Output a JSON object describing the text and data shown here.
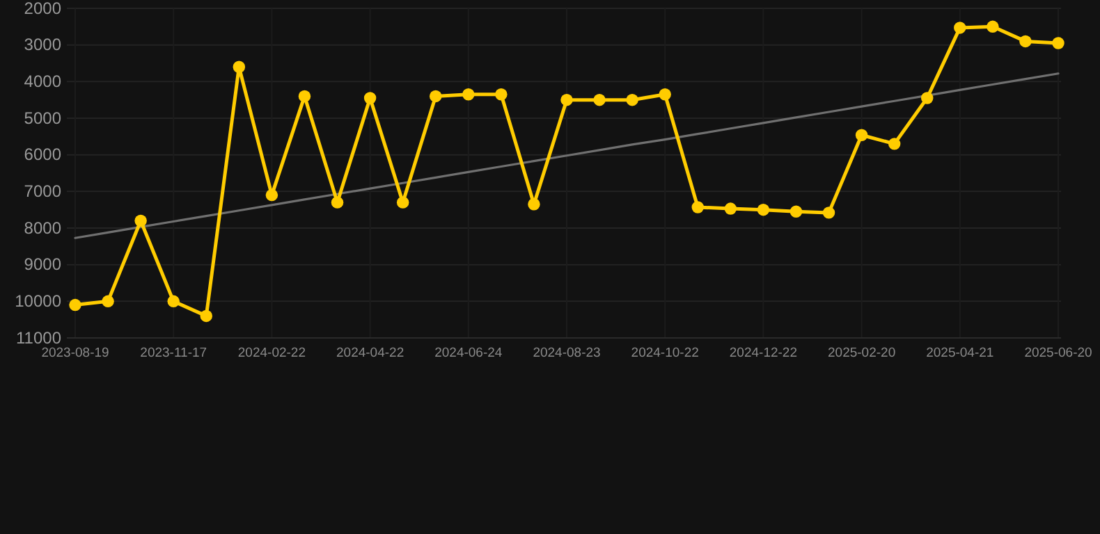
{
  "chart_data": {
    "type": "line",
    "categories": [
      "2023-08-19",
      null,
      null,
      "2023-11-17",
      null,
      null,
      "2024-02-22",
      null,
      null,
      "2024-04-22",
      null,
      null,
      "2024-06-24",
      null,
      null,
      "2024-08-23",
      null,
      null,
      "2024-10-22",
      null,
      null,
      "2024-12-22",
      null,
      null,
      "2025-02-20",
      null,
      null,
      "2025-04-21",
      null,
      null,
      "2025-06-20"
    ],
    "series": [
      {
        "color": "#ffcc00",
        "marker": "circle",
        "values": [
          10100,
          10000,
          7800,
          10000,
          10400,
          3600,
          7100,
          4400,
          7300,
          4450,
          7300,
          4400,
          4350,
          4350,
          7350,
          4500,
          4500,
          4500,
          4350,
          7430,
          7470,
          7500,
          7550,
          7580,
          5460,
          5700,
          4450,
          2530,
          2500,
          2900,
          2950
        ]
      },
      {
        "color": "#707070",
        "marker": "none",
        "values": [
          8270,
          8120,
          7970,
          7820,
          7670,
          7520,
          7370,
          7220,
          7070,
          6920,
          6770,
          6620,
          6470,
          6320,
          6170,
          6020,
          5870,
          5720,
          5580,
          5430,
          5280,
          5130,
          4980,
          4830,
          4680,
          4530,
          4380,
          4230,
          4080,
          3930,
          3780
        ]
      }
    ],
    "ylim": [
      11000,
      2000
    ],
    "yticks": [
      2000,
      3000,
      4000,
      5000,
      6000,
      7000,
      8000,
      9000,
      10000,
      11000
    ],
    "grid": true,
    "line_style": "solid"
  }
}
